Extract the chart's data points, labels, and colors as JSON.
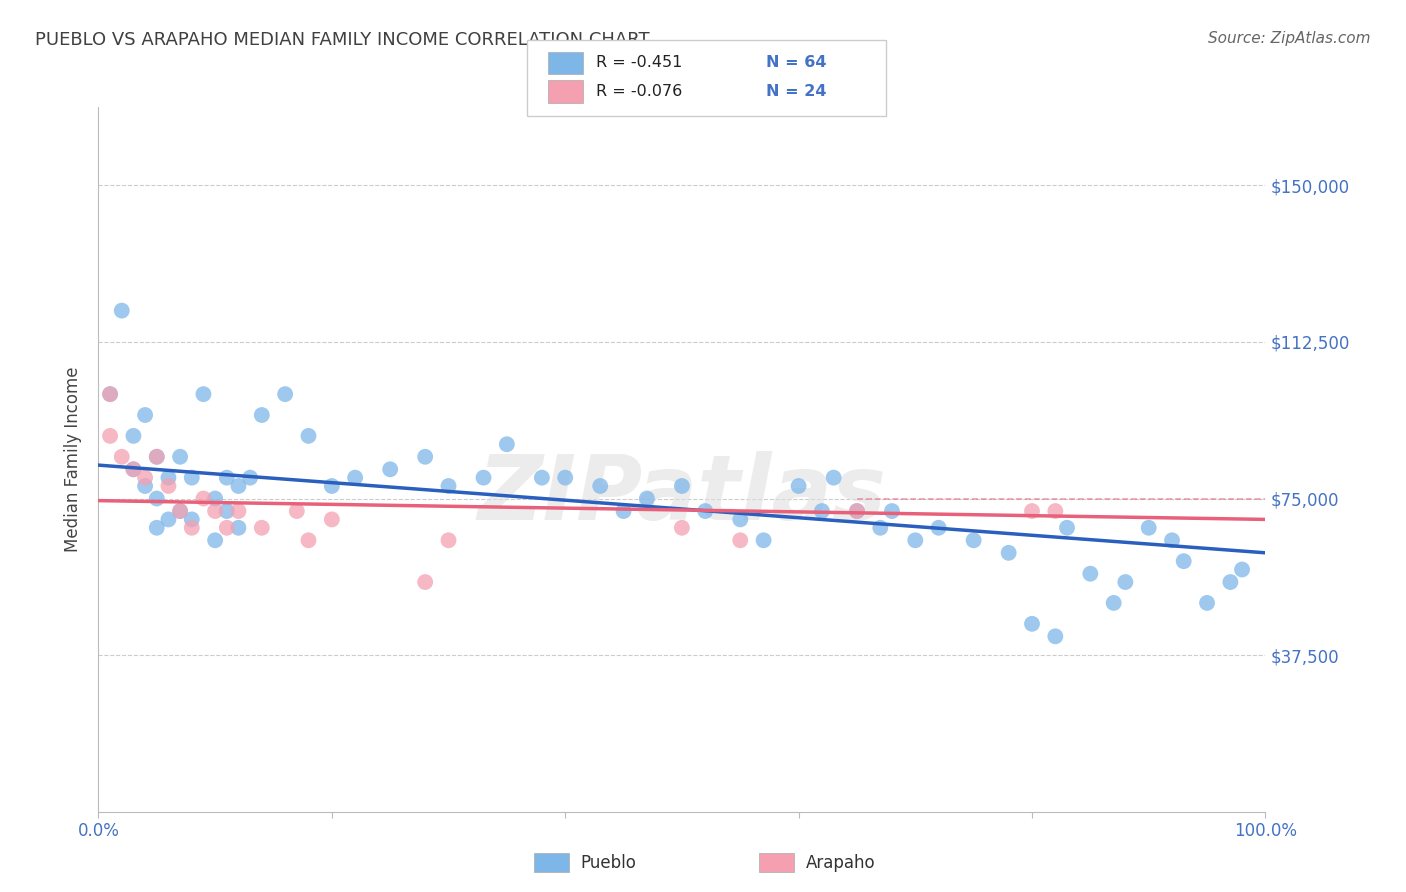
{
  "title": "PUEBLO VS ARAPAHO MEDIAN FAMILY INCOME CORRELATION CHART",
  "source_text": "Source: ZipAtlas.com",
  "ylabel": "Median Family Income",
  "xlim": [
    0,
    100
  ],
  "ylim": [
    0,
    168750
  ],
  "yticks": [
    0,
    37500,
    75000,
    112500,
    150000
  ],
  "ytick_labels": [
    "",
    "$37,500",
    "$75,000",
    "$112,500",
    "$150,000"
  ],
  "watermark": "ZIPatlas",
  "legend_pueblo_r": "R = -0.451",
  "legend_pueblo_n": "N = 64",
  "legend_arapaho_r": "R = -0.076",
  "legend_arapaho_n": "N = 24",
  "pueblo_color": "#7EB6E8",
  "arapaho_color": "#F4A0B0",
  "pueblo_line_color": "#2B5FBE",
  "arapaho_line_color": "#E8607A",
  "grid_color": "#CCCCCC",
  "text_color": "#4472C4",
  "title_color": "#404040",
  "background_color": "#FFFFFF",
  "pueblo_x": [
    1,
    2,
    3,
    3,
    4,
    4,
    5,
    5,
    5,
    6,
    6,
    7,
    7,
    8,
    8,
    9,
    10,
    10,
    11,
    11,
    12,
    12,
    13,
    14,
    16,
    18,
    20,
    22,
    25,
    28,
    30,
    33,
    35,
    38,
    40,
    43,
    45,
    47,
    50,
    52,
    55,
    57,
    60,
    62,
    63,
    65,
    67,
    68,
    70,
    72,
    75,
    78,
    80,
    82,
    83,
    85,
    87,
    88,
    90,
    92,
    93,
    95,
    97,
    98
  ],
  "pueblo_y": [
    100000,
    120000,
    90000,
    82000,
    95000,
    78000,
    85000,
    75000,
    68000,
    80000,
    70000,
    85000,
    72000,
    80000,
    70000,
    100000,
    75000,
    65000,
    80000,
    72000,
    78000,
    68000,
    80000,
    95000,
    100000,
    90000,
    78000,
    80000,
    82000,
    85000,
    78000,
    80000,
    88000,
    80000,
    80000,
    78000,
    72000,
    75000,
    78000,
    72000,
    70000,
    65000,
    78000,
    72000,
    80000,
    72000,
    68000,
    72000,
    65000,
    68000,
    65000,
    62000,
    45000,
    42000,
    68000,
    57000,
    50000,
    55000,
    68000,
    65000,
    60000,
    50000,
    55000,
    58000
  ],
  "arapaho_x": [
    1,
    1,
    2,
    3,
    4,
    5,
    6,
    7,
    8,
    9,
    10,
    11,
    12,
    14,
    17,
    18,
    20,
    28,
    30,
    50,
    55,
    65,
    80,
    82
  ],
  "arapaho_y": [
    100000,
    90000,
    85000,
    82000,
    80000,
    85000,
    78000,
    72000,
    68000,
    75000,
    72000,
    68000,
    72000,
    68000,
    72000,
    65000,
    70000,
    55000,
    65000,
    68000,
    65000,
    72000,
    72000,
    72000
  ],
  "pueblo_trend_x0": 0,
  "pueblo_trend_y0": 83000,
  "pueblo_trend_x1": 100,
  "pueblo_trend_y1": 62000,
  "arapaho_trend_x0": 0,
  "arapaho_trend_y0": 74500,
  "arapaho_trend_x1": 100,
  "arapaho_trend_y1": 70000,
  "arapaho_dashed_y": 75000,
  "arapaho_dashed_x_start": 65,
  "arapaho_dashed_x_end": 100
}
